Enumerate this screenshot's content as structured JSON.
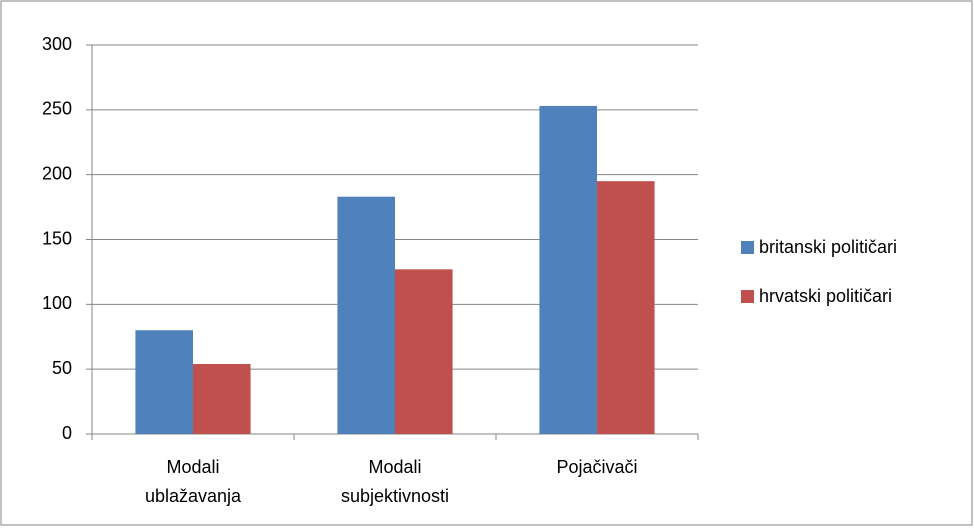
{
  "chart_data": {
    "type": "bar",
    "categories": [
      "Modali ublažavanja",
      "Modali subjektivnosti",
      "Pojačivači"
    ],
    "series": [
      {
        "name": "britanski političari",
        "color": "#4f81bd",
        "values": [
          80,
          183,
          253
        ]
      },
      {
        "name": "hrvatski političari",
        "color": "#c0504d",
        "values": [
          54,
          127,
          195
        ]
      }
    ],
    "ylim": [
      0,
      300
    ],
    "yticks": [
      0,
      50,
      100,
      150,
      200,
      250,
      300
    ],
    "grid": true,
    "legend": "right"
  }
}
